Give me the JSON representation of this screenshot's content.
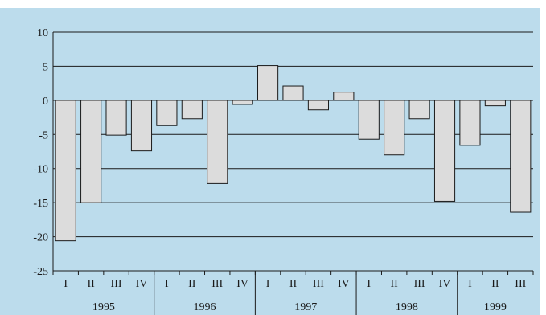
{
  "chart_data": {
    "type": "bar",
    "title": "",
    "xlabel": "",
    "ylabel": "",
    "ylim": [
      -25,
      10
    ],
    "yticks": [
      10,
      5,
      0,
      -5,
      -10,
      -15,
      -20,
      -25
    ],
    "grid": true,
    "legend": "none",
    "colors": {
      "page_background": "#ffffff",
      "plot_background": "#bcdcec",
      "bar_fill": "#dcdcdc",
      "bar_stroke": "#1a1a1a",
      "gridline": "#1a1a1a"
    },
    "categories": [
      "I",
      "II",
      "III",
      "IV",
      "I",
      "II",
      "III",
      "IV",
      "I",
      "II",
      "III",
      "IV",
      "I",
      "II",
      "III",
      "IV",
      "I",
      "II",
      "III"
    ],
    "years": [
      {
        "label": "1995",
        "count": 4
      },
      {
        "label": "1996",
        "count": 4
      },
      {
        "label": "1997",
        "count": 4
      },
      {
        "label": "1998",
        "count": 4
      },
      {
        "label": "1999",
        "count": 3
      }
    ],
    "values": [
      -20.6,
      -15,
      -5.1,
      -7.4,
      -3.7,
      -2.7,
      -12.2,
      -0.6,
      5.1,
      2.1,
      -1.4,
      1.2,
      -5.7,
      -8,
      -2.7,
      -14.8,
      -6.6,
      -0.8,
      -16.4
    ]
  }
}
